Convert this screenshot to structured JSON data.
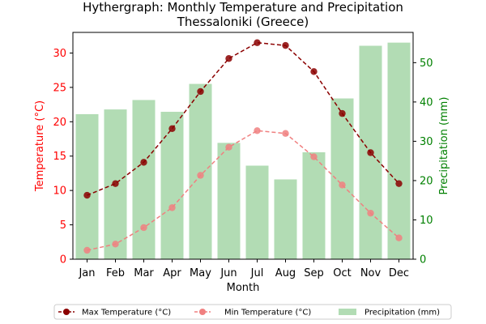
{
  "chart_data": {
    "type": "bar+line",
    "title": "Hythergraph: Monthly Temperature and Precipitation",
    "subtitle": "Thessaloniki (Greece)",
    "xlabel": "Month",
    "categories": [
      "Jan",
      "Feb",
      "Mar",
      "Apr",
      "May",
      "Jun",
      "Jul",
      "Aug",
      "Sep",
      "Oct",
      "Nov",
      "Dec"
    ],
    "y_left": {
      "label": "Temperature (°C)",
      "ylim": [
        0,
        33
      ],
      "ticks": [
        0,
        5,
        10,
        15,
        20,
        25,
        30
      ],
      "color": "#ff0000"
    },
    "y_right": {
      "label": "Precipitation (mm)",
      "ylim": [
        0,
        57.7
      ],
      "ticks": [
        0,
        10,
        20,
        30,
        40,
        50
      ],
      "color": "#008000"
    },
    "series": [
      {
        "name": "Max Temperature (°C)",
        "type": "line",
        "axis": "left",
        "color": "#8b0000",
        "style": "dashed",
        "values": [
          9.3,
          11.0,
          14.1,
          19.0,
          24.4,
          29.2,
          31.5,
          31.1,
          27.3,
          21.2,
          15.5,
          11.0
        ]
      },
      {
        "name": "Min Temperature (°C)",
        "type": "line",
        "axis": "left",
        "color": "#f08080",
        "style": "dashed",
        "values": [
          1.3,
          2.2,
          4.6,
          7.5,
          12.2,
          16.3,
          18.7,
          18.3,
          14.9,
          10.8,
          6.7,
          3.1
        ]
      },
      {
        "name": "Precipitation (mm)",
        "type": "bar",
        "axis": "right",
        "color": "#4caf50",
        "opacity": 0.43,
        "values": [
          36.9,
          38.1,
          40.5,
          37.5,
          44.6,
          29.6,
          23.8,
          20.3,
          27.2,
          40.9,
          54.3,
          55.1
        ]
      }
    ],
    "grid": false,
    "legend": "bottom-center"
  }
}
